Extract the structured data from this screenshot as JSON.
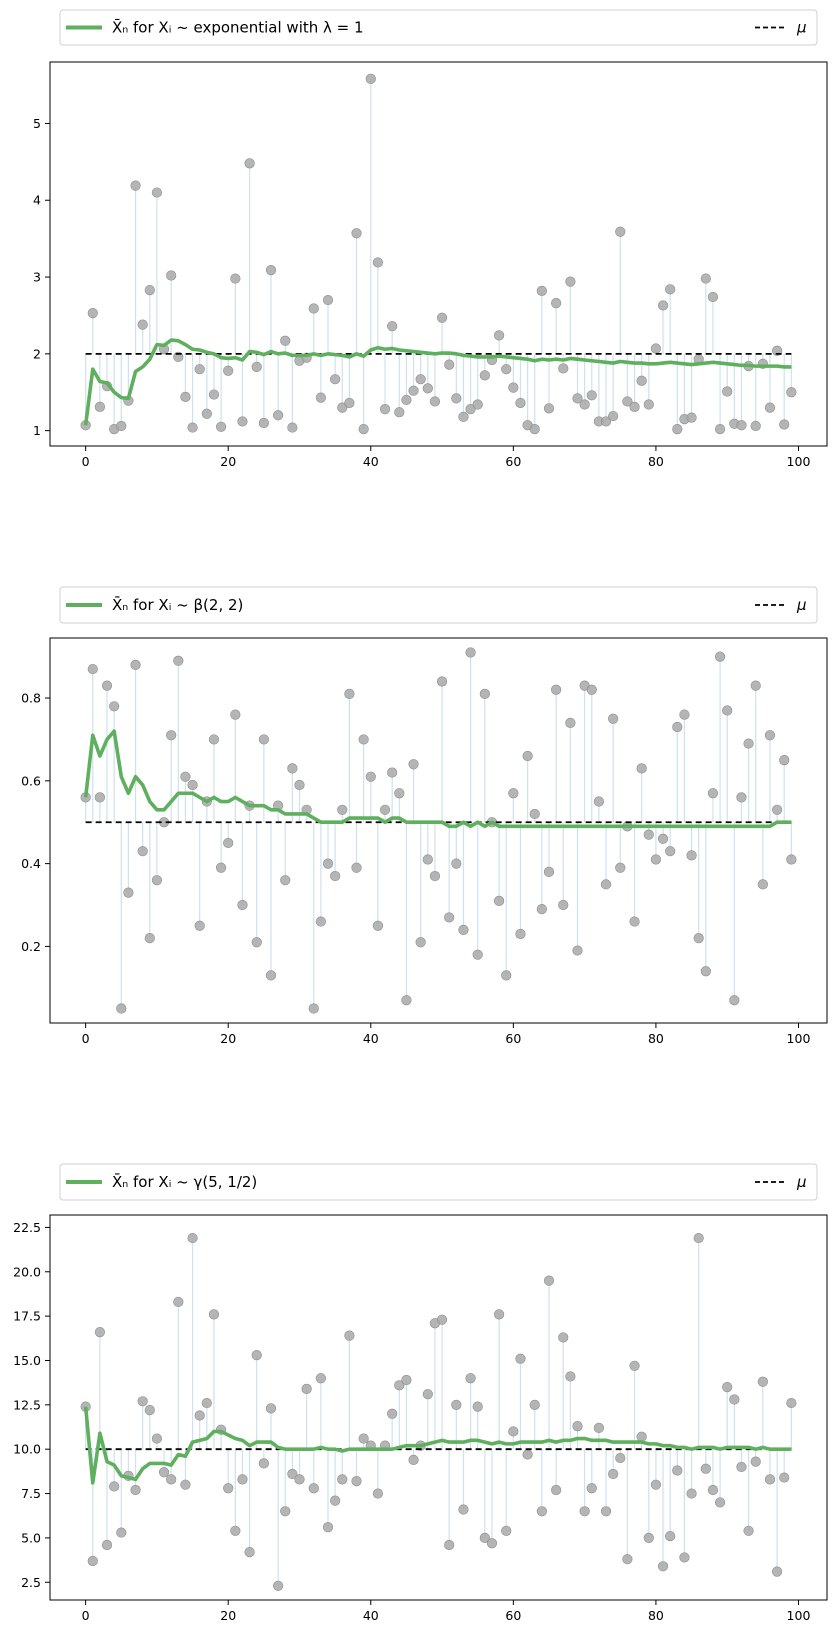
{
  "chart_data": [
    {
      "type": "scatter",
      "legend": {
        "series_label": "exponential with λ = 1",
        "series_prefix": "X̄ₙ for Xᵢ ~ ",
        "mu_label": "μ",
        "placement": "top, above axes"
      },
      "mu": 2.0,
      "xlim": [
        -5,
        104
      ],
      "ylim": [
        0.8,
        5.8
      ],
      "xticks": [
        0,
        20,
        40,
        60,
        80,
        100
      ],
      "yticks": [
        1,
        2,
        3,
        4,
        5
      ],
      "ytick_labels": [
        "1",
        "2",
        "3",
        "4",
        "5"
      ],
      "samples": [
        1.07,
        2.53,
        1.31,
        1.58,
        1.02,
        1.06,
        1.39,
        4.19,
        2.38,
        2.83,
        4.1,
        2.06,
        3.02,
        1.96,
        1.44,
        1.04,
        1.8,
        1.22,
        1.47,
        1.05,
        1.78,
        2.98,
        1.12,
        4.48,
        1.83,
        1.1,
        3.09,
        1.2,
        2.17,
        1.04,
        1.91,
        1.95,
        2.59,
        1.43,
        2.7,
        1.67,
        1.3,
        1.36,
        3.57,
        1.02,
        5.58,
        3.19,
        1.28,
        2.36,
        1.24,
        1.4,
        1.52,
        1.67,
        1.55,
        1.38,
        2.47,
        1.86,
        1.42,
        1.18,
        1.28,
        1.34,
        1.72,
        1.92,
        2.24,
        1.8,
        1.56,
        1.36,
        1.07,
        1.02,
        2.82,
        1.29,
        2.66,
        1.81,
        2.94,
        1.42,
        1.34,
        1.46,
        1.12,
        1.12,
        1.19,
        3.59,
        1.38,
        1.31,
        1.65,
        1.34,
        2.07,
        2.63,
        2.84,
        1.02,
        1.15,
        1.17,
        1.93,
        2.98,
        2.74,
        1.02,
        1.51,
        1.09,
        1.07,
        1.84,
        1.06,
        1.87,
        1.3,
        2.04,
        1.08,
        1.5
      ],
      "running_mean": [
        1.07,
        1.8,
        1.64,
        1.62,
        1.5,
        1.43,
        1.42,
        1.77,
        1.83,
        1.93,
        2.12,
        2.11,
        2.18,
        2.17,
        2.12,
        2.06,
        2.05,
        2.02,
        2.0,
        1.95,
        1.94,
        1.95,
        1.92,
        2.03,
        2.02,
        1.99,
        2.03,
        2.0,
        2.01,
        1.98,
        1.98,
        1.98,
        2.0,
        1.98,
        2.0,
        1.99,
        1.98,
        1.96,
        2.0,
        1.97,
        2.05,
        2.08,
        2.06,
        2.07,
        2.05,
        2.04,
        2.03,
        2.02,
        2.01,
        2.0,
        2.01,
        2.01,
        2.0,
        1.98,
        1.97,
        1.96,
        1.96,
        1.96,
        1.97,
        1.96,
        1.95,
        1.94,
        1.93,
        1.91,
        1.93,
        1.92,
        1.93,
        1.92,
        1.94,
        1.93,
        1.92,
        1.91,
        1.9,
        1.89,
        1.88,
        1.9,
        1.89,
        1.88,
        1.88,
        1.87,
        1.87,
        1.88,
        1.89,
        1.88,
        1.87,
        1.86,
        1.87,
        1.88,
        1.89,
        1.88,
        1.87,
        1.86,
        1.85,
        1.85,
        1.84,
        1.84,
        1.84,
        1.84,
        1.83,
        1.83
      ]
    },
    {
      "type": "scatter",
      "legend": {
        "series_label": "β(2, 2)",
        "series_prefix": "X̄ₙ for Xᵢ ~ ",
        "mu_label": "μ",
        "placement": "top, above axes"
      },
      "mu": 0.5,
      "xlim": [
        -5,
        104
      ],
      "ylim": [
        0.015,
        0.945
      ],
      "xticks": [
        0,
        20,
        40,
        60,
        80,
        100
      ],
      "yticks": [
        0.2,
        0.4,
        0.6,
        0.8
      ],
      "ytick_labels": [
        "0.2",
        "0.4",
        "0.6",
        "0.8"
      ],
      "samples": [
        0.56,
        0.87,
        0.56,
        0.83,
        0.78,
        0.05,
        0.33,
        0.88,
        0.43,
        0.22,
        0.36,
        0.5,
        0.71,
        0.89,
        0.61,
        0.59,
        0.25,
        0.55,
        0.7,
        0.39,
        0.45,
        0.76,
        0.3,
        0.54,
        0.21,
        0.7,
        0.13,
        0.54,
        0.36,
        0.63,
        0.59,
        0.53,
        0.05,
        0.26,
        0.4,
        0.37,
        0.53,
        0.81,
        0.39,
        0.7,
        0.61,
        0.25,
        0.53,
        0.62,
        0.57,
        0.07,
        0.64,
        0.21,
        0.41,
        0.37,
        0.84,
        0.27,
        0.4,
        0.24,
        0.91,
        0.18,
        0.81,
        0.5,
        0.31,
        0.13,
        0.57,
        0.23,
        0.66,
        0.52,
        0.29,
        0.38,
        0.82,
        0.3,
        0.74,
        0.19,
        0.83,
        0.82,
        0.55,
        0.35,
        0.75,
        0.39,
        0.49,
        0.26,
        0.63,
        0.47,
        0.41,
        0.46,
        0.43,
        0.73,
        0.76,
        0.42,
        0.22,
        0.14,
        0.57,
        0.9,
        0.77,
        0.07,
        0.56,
        0.69,
        0.83,
        0.35,
        0.71,
        0.53,
        0.65,
        0.41
      ],
      "running_mean": [
        0.56,
        0.71,
        0.66,
        0.7,
        0.72,
        0.61,
        0.57,
        0.61,
        0.59,
        0.55,
        0.53,
        0.53,
        0.55,
        0.57,
        0.57,
        0.57,
        0.56,
        0.55,
        0.56,
        0.55,
        0.55,
        0.56,
        0.55,
        0.54,
        0.54,
        0.54,
        0.53,
        0.53,
        0.52,
        0.52,
        0.52,
        0.52,
        0.51,
        0.5,
        0.5,
        0.5,
        0.5,
        0.51,
        0.51,
        0.51,
        0.51,
        0.51,
        0.5,
        0.51,
        0.51,
        0.5,
        0.5,
        0.5,
        0.5,
        0.5,
        0.5,
        0.49,
        0.49,
        0.5,
        0.49,
        0.5,
        0.49,
        0.5,
        0.49,
        0.49,
        0.49,
        0.49,
        0.49,
        0.49,
        0.49,
        0.49,
        0.49,
        0.49,
        0.49,
        0.49,
        0.49,
        0.49,
        0.49,
        0.49,
        0.49,
        0.49,
        0.49,
        0.49,
        0.49,
        0.49,
        0.49,
        0.49,
        0.49,
        0.49,
        0.49,
        0.49,
        0.49,
        0.49,
        0.49,
        0.49,
        0.49,
        0.49,
        0.49,
        0.49,
        0.49,
        0.49,
        0.49,
        0.5,
        0.5,
        0.5
      ]
    },
    {
      "type": "scatter",
      "legend": {
        "series_label": "γ(5, 1/2)",
        "series_prefix": "X̄ₙ for Xᵢ ~ ",
        "mu_label": "μ",
        "placement": "top, above axes"
      },
      "mu": 10.0,
      "xlim": [
        -5,
        104
      ],
      "ylim": [
        1.5,
        23.2
      ],
      "xticks": [
        0,
        20,
        40,
        60,
        80,
        100
      ],
      "yticks": [
        2.5,
        5.0,
        7.5,
        10.0,
        12.5,
        15.0,
        17.5,
        20.0,
        22.5
      ],
      "ytick_labels": [
        "2.5",
        "5.0",
        "7.5",
        "10.0",
        "12.5",
        "15.0",
        "17.5",
        "20.0",
        "22.5"
      ],
      "samples": [
        12.4,
        3.7,
        16.6,
        4.6,
        7.9,
        5.3,
        8.5,
        7.7,
        12.7,
        12.2,
        10.6,
        8.7,
        8.3,
        18.3,
        8.0,
        21.9,
        11.9,
        12.6,
        17.6,
        11.1,
        7.8,
        5.4,
        8.3,
        4.2,
        15.3,
        9.2,
        12.3,
        2.3,
        6.5,
        8.6,
        8.3,
        13.4,
        7.8,
        14.0,
        5.6,
        7.1,
        8.3,
        16.4,
        8.2,
        10.6,
        10.2,
        7.5,
        10.2,
        12.0,
        13.6,
        13.9,
        9.4,
        10.2,
        13.1,
        17.1,
        17.3,
        4.6,
        12.5,
        6.6,
        14.0,
        12.4,
        5.0,
        4.7,
        17.6,
        5.4,
        11.0,
        15.1,
        9.7,
        12.5,
        6.5,
        19.5,
        7.7,
        16.3,
        14.1,
        11.3,
        6.5,
        7.8,
        11.2,
        6.5,
        8.6,
        9.5,
        3.8,
        14.7,
        10.7,
        5.0,
        8.0,
        3.4,
        5.1,
        8.8,
        3.9,
        7.5,
        21.9,
        8.9,
        7.7,
        7.0,
        13.5,
        12.8,
        9.0,
        5.4,
        9.3,
        13.8,
        8.3,
        3.1,
        8.4,
        12.6
      ],
      "running_mean": [
        12.4,
        8.1,
        10.9,
        9.3,
        9.1,
        8.5,
        8.4,
        8.3,
        8.9,
        9.2,
        9.2,
        9.2,
        9.1,
        9.7,
        9.6,
        10.4,
        10.5,
        10.6,
        11.0,
        11.0,
        10.8,
        10.6,
        10.5,
        10.2,
        10.4,
        10.4,
        10.4,
        10.1,
        10.0,
        10.0,
        10.0,
        10.0,
        10.0,
        10.1,
        10.0,
        10.0,
        9.9,
        10.0,
        10.0,
        10.0,
        10.0,
        10.0,
        10.0,
        10.0,
        10.1,
        10.2,
        10.2,
        10.2,
        10.3,
        10.4,
        10.5,
        10.4,
        10.4,
        10.4,
        10.5,
        10.5,
        10.4,
        10.3,
        10.4,
        10.3,
        10.3,
        10.4,
        10.4,
        10.4,
        10.4,
        10.5,
        10.4,
        10.5,
        10.5,
        10.6,
        10.6,
        10.5,
        10.5,
        10.5,
        10.4,
        10.4,
        10.4,
        10.4,
        10.4,
        10.3,
        10.3,
        10.2,
        10.2,
        10.1,
        10.1,
        10.0,
        10.1,
        10.1,
        10.1,
        10.0,
        10.1,
        10.1,
        10.1,
        10.1,
        10.0,
        10.1,
        10.0,
        10.0,
        10.0,
        10.0
      ]
    }
  ],
  "style": {
    "mean_line_color": "#5eb05e",
    "sample_marker_color": "#a8a8a8",
    "stem_color": "#cde1ef",
    "mu_line_color": "#000000"
  }
}
